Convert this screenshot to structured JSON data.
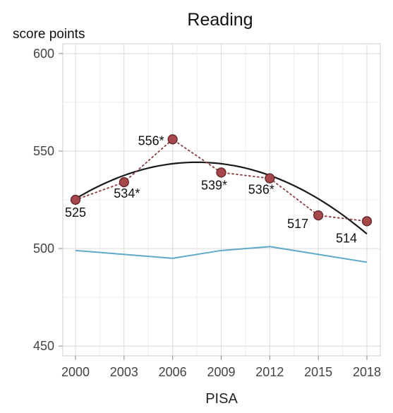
{
  "chart_data": {
    "type": "line",
    "title": "Reading",
    "ylabel": "score points",
    "xlabel": "PISA",
    "ylim": [
      445,
      605
    ],
    "xlim": [
      2000,
      2018
    ],
    "y_ticks": [
      "450",
      "500",
      "550",
      "600"
    ],
    "x_ticks": [
      "2000",
      "2003",
      "2006",
      "2009",
      "2012",
      "2015",
      "2018"
    ],
    "grid": true,
    "series": [
      {
        "style": "dotted-with-points",
        "color": "#8B3A3E",
        "x": [
          2000,
          2003,
          2006,
          2009,
          2012,
          2015,
          2018
        ],
        "values": [
          525,
          534,
          556,
          539,
          536,
          517,
          514
        ],
        "labels": [
          "525",
          "534*",
          "556*",
          "539*",
          "536*",
          "517",
          "514"
        ]
      },
      {
        "style": "trend-curve",
        "color": "#1a1a1a",
        "x": [
          2000,
          2003,
          2006,
          2009,
          2012,
          2015,
          2018
        ],
        "values": [
          525.5,
          537.5,
          543.5,
          543.5,
          537.5,
          525.5,
          507.5
        ]
      },
      {
        "style": "line",
        "color": "#5FA8C8",
        "x": [
          2000,
          2003,
          2006,
          2009,
          2012,
          2015,
          2018
        ],
        "values": [
          499,
          497,
          495,
          499,
          501,
          497,
          493
        ]
      }
    ],
    "colors": {
      "grid": "#dedede",
      "axis_box": "#cccccc",
      "marker_fill": "#A5474B",
      "marker_stroke": "#5a2226"
    }
  }
}
